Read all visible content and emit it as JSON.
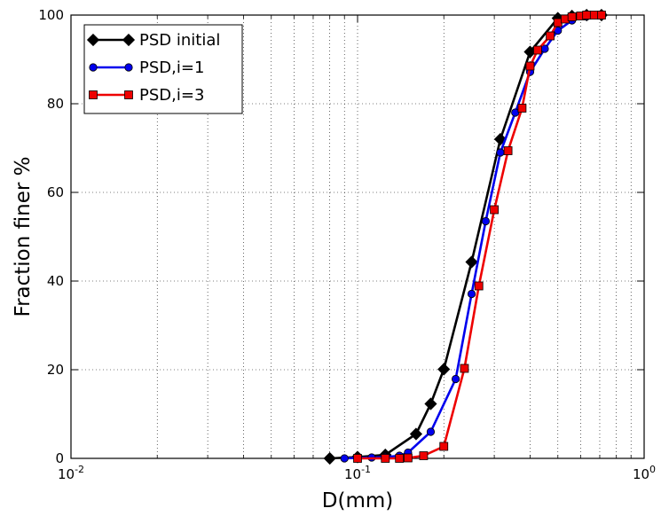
{
  "chart_data": {
    "type": "line",
    "title": "",
    "xlabel": "D(mm)",
    "ylabel": "Fraction finer %",
    "xscale": "log",
    "xlim": [
      0.01,
      1.0
    ],
    "ylim": [
      0,
      100
    ],
    "grid": true,
    "legend_position": "top-left",
    "x_ticks": [
      {
        "value": 0.01,
        "base": "10",
        "exp": "-2"
      },
      {
        "value": 0.1,
        "base": "10",
        "exp": "-1"
      },
      {
        "value": 1.0,
        "base": "10",
        "exp": "0"
      }
    ],
    "y_ticks": [
      {
        "value": 0,
        "label": "0"
      },
      {
        "value": 20,
        "label": "20"
      },
      {
        "value": 40,
        "label": "40"
      },
      {
        "value": 60,
        "label": "60"
      },
      {
        "value": 80,
        "label": "80"
      },
      {
        "value": 100,
        "label": "100"
      }
    ],
    "series": [
      {
        "name": "PSD initial",
        "color": "#000000",
        "marker": "diamond",
        "x": [
          0.08,
          0.1,
          0.125,
          0.16,
          0.18,
          0.2,
          0.25,
          0.315,
          0.4,
          0.5,
          0.56,
          0.63,
          0.71
        ],
        "y": [
          0.0,
          0.3,
          0.8,
          5.5,
          12.3,
          20.1,
          44.3,
          72.0,
          91.7,
          99.3,
          99.8,
          100.0,
          100.0
        ]
      },
      {
        "name": "PSD,i=1",
        "color": "#0000ee",
        "marker": "circle",
        "x": [
          0.09,
          0.1,
          0.112,
          0.125,
          0.14,
          0.15,
          0.18,
          0.22,
          0.25,
          0.28,
          0.315,
          0.355,
          0.4,
          0.45,
          0.5,
          0.56,
          0.63,
          0.71
        ],
        "y": [
          0.0,
          0.1,
          0.2,
          0.3,
          0.6,
          1.3,
          6.0,
          17.9,
          37.1,
          53.5,
          69.0,
          78.0,
          87.2,
          92.4,
          96.5,
          98.8,
          99.7,
          100.0
        ]
      },
      {
        "name": "PSD,i=3",
        "color": "#ee0000",
        "marker": "square",
        "x": [
          0.1,
          0.125,
          0.14,
          0.15,
          0.17,
          0.2,
          0.236,
          0.265,
          0.3,
          0.335,
          0.375,
          0.4,
          0.425,
          0.47,
          0.5,
          0.53,
          0.56,
          0.6,
          0.63,
          0.67,
          0.71
        ],
        "y": [
          0.0,
          0.0,
          0.0,
          0.1,
          0.6,
          2.7,
          20.3,
          38.9,
          56.1,
          69.4,
          79.0,
          88.5,
          92.1,
          95.3,
          98.3,
          99.1,
          99.6,
          99.8,
          100.0,
          100.0,
          100.0
        ]
      }
    ]
  }
}
